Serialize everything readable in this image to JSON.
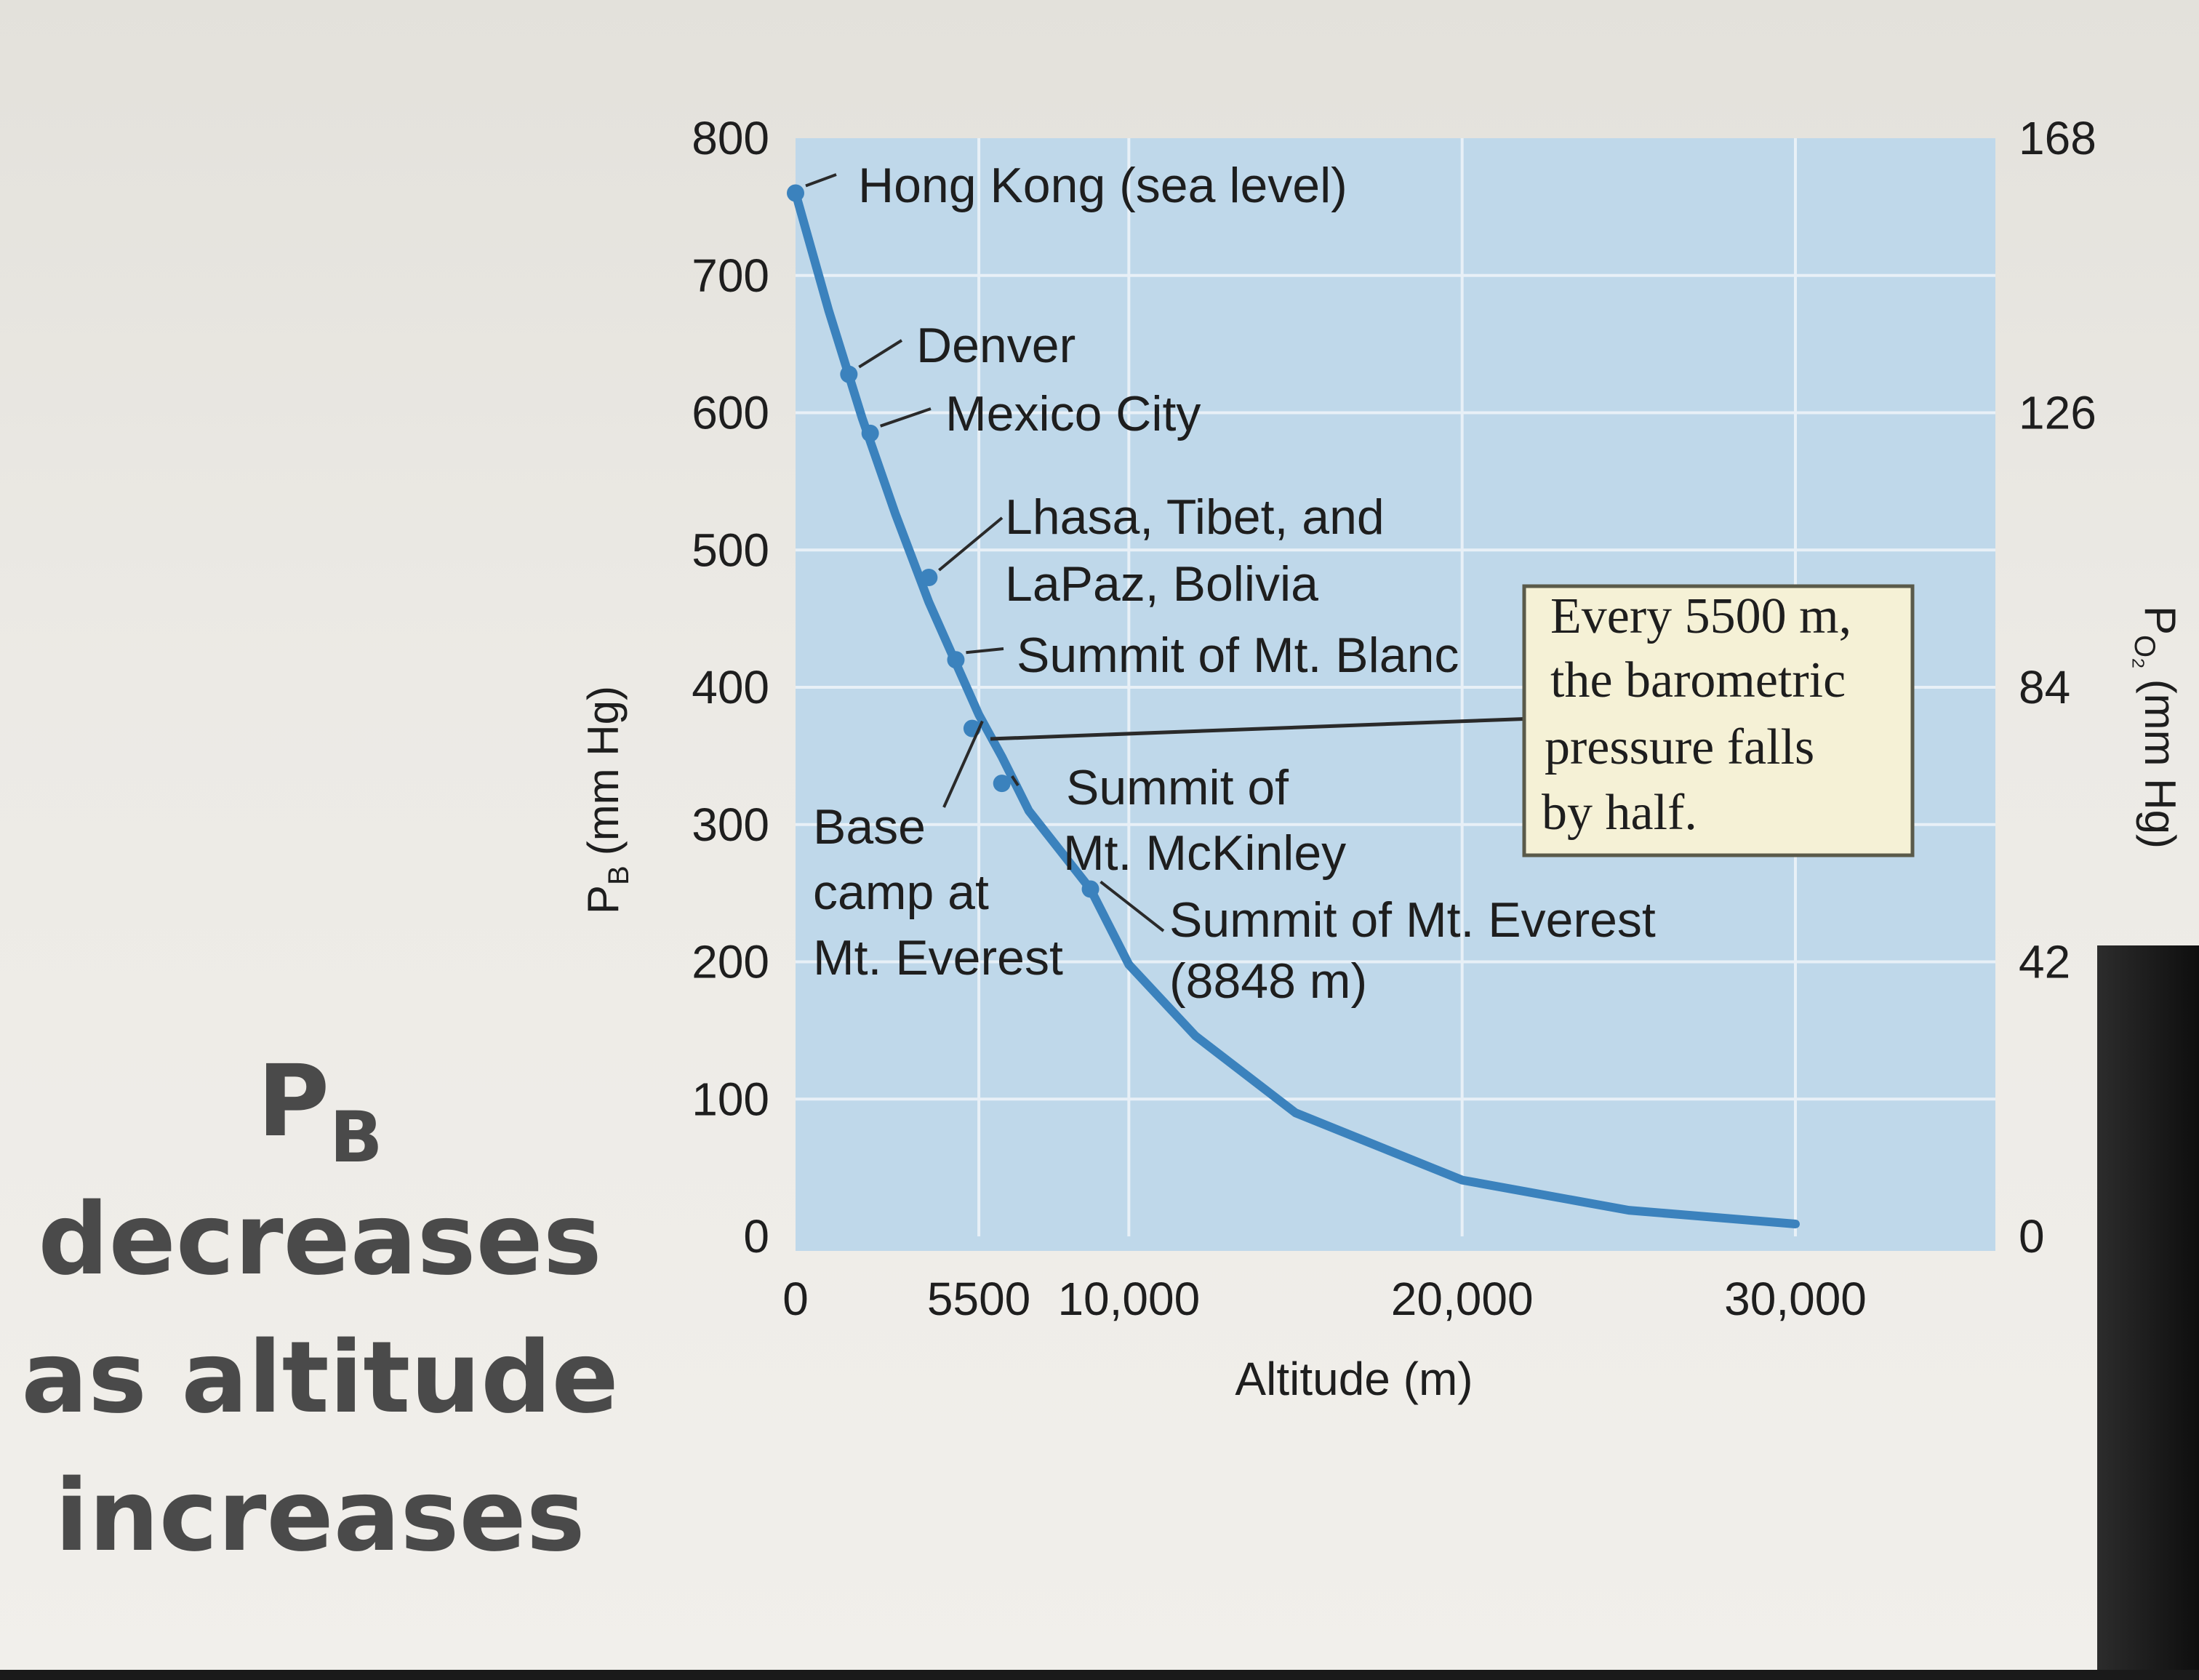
{
  "side_caption": {
    "symbol": "P",
    "symbol_sub": "B",
    "line1": "decreases",
    "line2": "as altitude",
    "line3": "increases"
  },
  "colors": {
    "plot_bg": "#bfd8ea",
    "curve": "#3b82bd",
    "gridline": "#e8f0f7",
    "callout_bg": "#f5f1d6"
  },
  "chart_data": {
    "type": "line",
    "xlabel": "Altitude (m)",
    "ylabel": "P",
    "ylabel_sub": "B",
    "ylabel_unit": "(mm Hg)",
    "y2label": "P",
    "y2label_sub": "O₂",
    "y2label_unit": "(mm Hg)",
    "x_ticks": [
      0,
      5500,
      10000,
      20000,
      30000
    ],
    "x_tick_labels": [
      "0",
      "5500",
      "10,000",
      "20,000",
      "30,000"
    ],
    "y_ticks": [
      0,
      100,
      200,
      300,
      400,
      500,
      600,
      700,
      800
    ],
    "y2_ticks": [
      0,
      42,
      84,
      126,
      168
    ],
    "xlim": [
      0,
      36000
    ],
    "ylim": [
      0,
      800
    ],
    "grid": true,
    "series": [
      {
        "x": [
          0,
          1000,
          2000,
          3000,
          4000,
          5500,
          6200,
          7000,
          8848,
          10000,
          12000,
          15000,
          20000,
          25000,
          30000
        ],
        "y": [
          760,
          674,
          596,
          526,
          462,
          380,
          349,
          310,
          253,
          198,
          146,
          90,
          41,
          19,
          9
        ]
      }
    ],
    "annotations": [
      {
        "label": "Hong Kong (sea level)",
        "x": 0,
        "y": 760
      },
      {
        "label": "Denver",
        "x": 1600,
        "y": 628
      },
      {
        "label": "Mexico City",
        "x": 2240,
        "y": 585
      },
      {
        "label": "Lhasa, Tibet, and",
        "label2": "LaPaz, Bolivia",
        "x": 4000,
        "y": 480
      },
      {
        "label": "Summit of Mt. Blanc",
        "x": 4810,
        "y": 420
      },
      {
        "label": "Base",
        "label2": "camp at",
        "label3": "Mt. Everest",
        "x": 5300,
        "y": 370
      },
      {
        "label": "Summit of",
        "label2": "Mt. McKinley",
        "x": 6190,
        "y": 330
      },
      {
        "label": "Summit of Mt. Everest",
        "label2": "(8848 m)",
        "x": 8848,
        "y": 253
      }
    ],
    "callout": {
      "line1": "Every 5500 m,",
      "line2": "the barometric",
      "line3": "pressure falls",
      "line4": "by half."
    }
  }
}
